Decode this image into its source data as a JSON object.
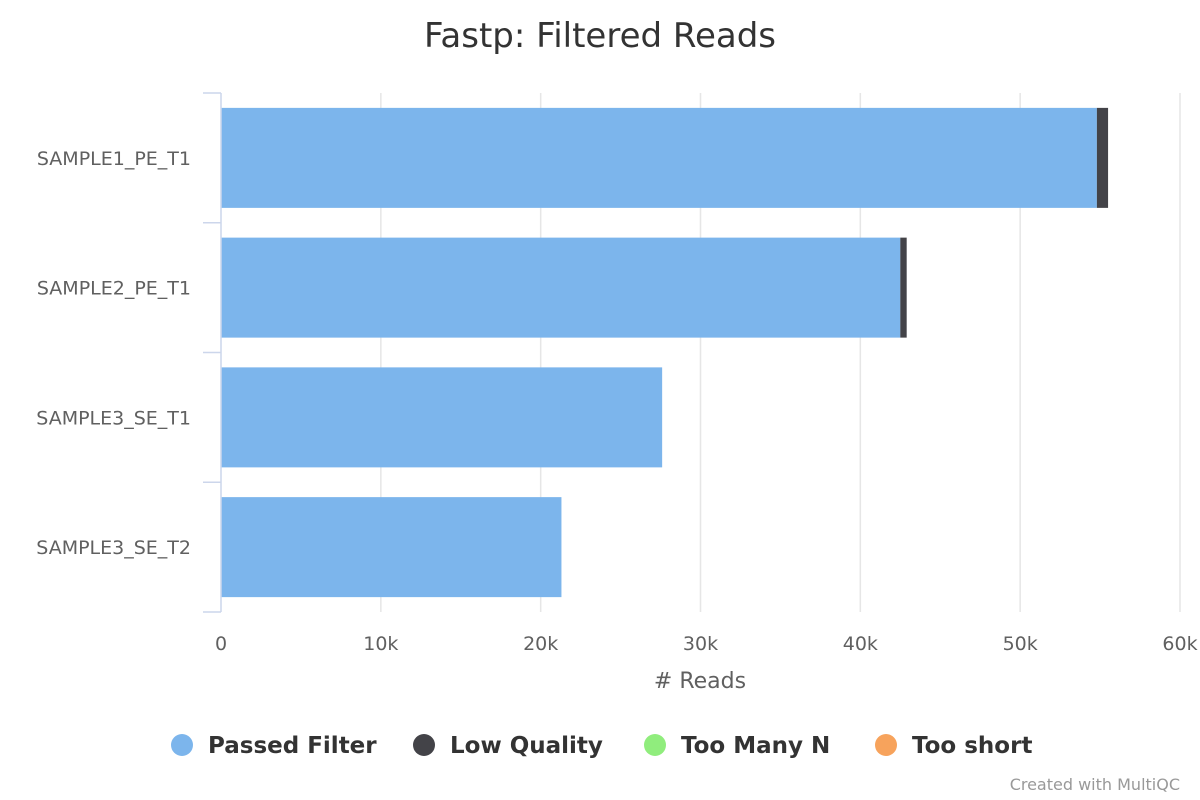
{
  "chart_data": {
    "type": "bar",
    "orientation": "horizontal",
    "stacked": true,
    "title": "Fastp: Filtered Reads",
    "xlabel": "# Reads",
    "ylabel": "",
    "xlim": [
      0,
      60000
    ],
    "ticks": [
      0,
      10000,
      20000,
      30000,
      40000,
      50000,
      60000
    ],
    "tick_labels": [
      "0",
      "10k",
      "20k",
      "30k",
      "40k",
      "50k",
      "60k"
    ],
    "grid": true,
    "legend_position": "bottom",
    "categories": [
      "SAMPLE1_PE_T1",
      "SAMPLE2_PE_T1",
      "SAMPLE3_SE_T1",
      "SAMPLE3_SE_T2"
    ],
    "series": [
      {
        "name": "Passed Filter",
        "color": "#7cb5ec",
        "values": [
          54800,
          42500,
          27600,
          21300
        ]
      },
      {
        "name": "Low Quality",
        "color": "#434348",
        "values": [
          700,
          400,
          0,
          0
        ]
      },
      {
        "name": "Too Many N",
        "color": "#90ed7d",
        "values": [
          0,
          0,
          0,
          0
        ]
      },
      {
        "name": "Too short",
        "color": "#f7a35c",
        "values": [
          0,
          0,
          0,
          0
        ]
      }
    ]
  },
  "credit": "Created with MultiQC"
}
